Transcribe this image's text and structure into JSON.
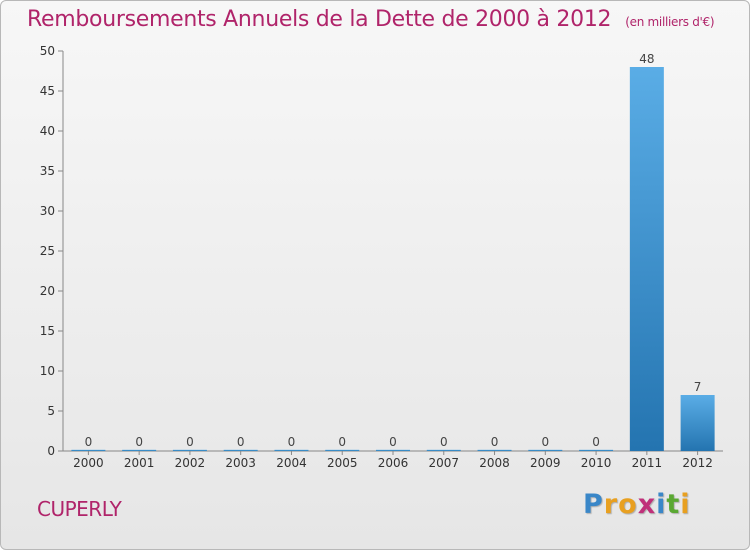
{
  "title": "Remboursements Annuels de la Dette de 2000 à 2012",
  "unit": "(en milliers d'€)",
  "commune": "CUPERLY",
  "logo": {
    "letters": [
      "P",
      "r",
      "o",
      "x",
      "i",
      "t",
      "i"
    ],
    "colors": [
      "#3a87c8",
      "#e8a020",
      "#e8a020",
      "#c0307a",
      "#3a87c8",
      "#5aa832",
      "#e8a020"
    ]
  },
  "colors": {
    "bar_top": "#5aade6",
    "bar_bottom": "#2474b0",
    "title": "#b0246a"
  },
  "chart_data": {
    "type": "bar",
    "categories": [
      "2000",
      "2001",
      "2002",
      "2003",
      "2004",
      "2005",
      "2006",
      "2007",
      "2008",
      "2009",
      "2010",
      "2011",
      "2012"
    ],
    "values": [
      0,
      0,
      0,
      0,
      0,
      0,
      0,
      0,
      0,
      0,
      0,
      48,
      7
    ],
    "ylim": [
      0,
      50
    ],
    "yticks": [
      0,
      5,
      10,
      15,
      20,
      25,
      30,
      35,
      40,
      45,
      50
    ],
    "grid": false,
    "data_labels": true
  }
}
